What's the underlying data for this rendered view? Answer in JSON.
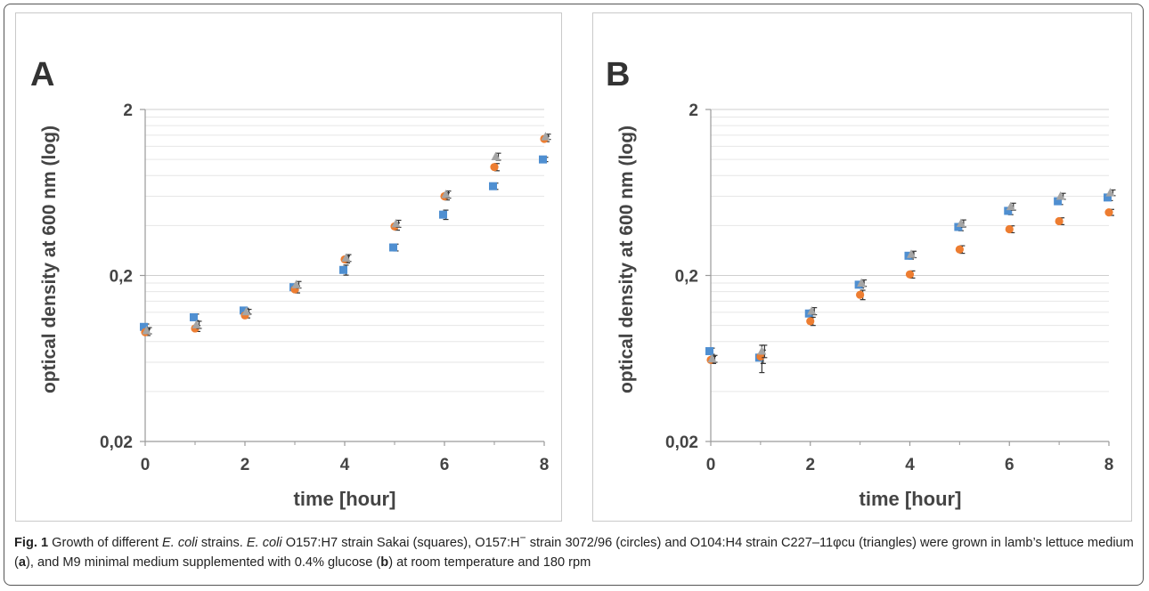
{
  "chart_data": [
    {
      "panel": "A",
      "type": "scatter",
      "xlabel": "time [hour]",
      "ylabel": "optical density at 600 nm (log)",
      "xlim": [
        0,
        8
      ],
      "ylim": [
        0.02,
        2
      ],
      "yscale": "log",
      "xticks": [
        "0",
        "2",
        "4",
        "6",
        "8"
      ],
      "yticks": [
        {
          "value": 0.02,
          "label": "0,02"
        },
        {
          "value": 0.2,
          "label": "0,2"
        },
        {
          "value": 2,
          "label": "2"
        }
      ],
      "grid": true,
      "series": [
        {
          "marker": "square",
          "color": "#4f8fd1",
          "x": [
            0,
            1,
            2,
            3,
            4,
            5,
            6,
            7,
            8
          ],
          "y": [
            0.098,
            0.112,
            0.123,
            0.17,
            0.216,
            0.295,
            0.465,
            0.69,
            1.0
          ],
          "err": [
            0.004,
            0.005,
            0.004,
            0.008,
            0.015,
            0.014,
            0.03,
            0.03,
            0.03
          ]
        },
        {
          "marker": "circle",
          "color": "#ed7d31",
          "x": [
            0,
            1,
            2,
            3,
            4,
            5,
            6,
            7,
            8
          ],
          "y": [
            0.091,
            0.096,
            0.115,
            0.165,
            0.25,
            0.395,
            0.6,
            0.9,
            1.33
          ],
          "err": [
            0.004,
            0.004,
            0.004,
            0.008,
            0.012,
            0.02,
            0.03,
            0.045,
            0.05
          ]
        },
        {
          "marker": "triangle",
          "color": "#a5a5a5",
          "x": [
            0,
            1,
            2,
            3,
            4,
            5,
            6,
            7,
            8
          ],
          "y": [
            0.093,
            0.101,
            0.121,
            0.176,
            0.255,
            0.41,
            0.615,
            1.04,
            1.37
          ],
          "err": [
            0.004,
            0.005,
            0.004,
            0.008,
            0.012,
            0.02,
            0.03,
            0.05,
            0.05
          ]
        }
      ]
    },
    {
      "panel": "B",
      "type": "scatter",
      "xlabel": "time [hour]",
      "ylabel": "optical density at 600 nm (log)",
      "xlim": [
        0,
        8
      ],
      "ylim": [
        0.02,
        2
      ],
      "yscale": "log",
      "xticks": [
        "0",
        "2",
        "4",
        "6",
        "8"
      ],
      "yticks": [
        {
          "value": 0.02,
          "label": "0,02"
        },
        {
          "value": 0.2,
          "label": "0,2"
        },
        {
          "value": 2,
          "label": "2"
        }
      ],
      "grid": true,
      "series": [
        {
          "marker": "square",
          "color": "#4f8fd1",
          "x": [
            0,
            1,
            2,
            3,
            4,
            5,
            6,
            7,
            8
          ],
          "y": [
            0.07,
            0.064,
            0.118,
            0.176,
            0.263,
            0.392,
            0.49,
            0.56,
            0.59
          ],
          "err": [
            0.003,
            0.012,
            0.006,
            0.008,
            0.012,
            0.02,
            0.025,
            0.025,
            0.025
          ]
        },
        {
          "marker": "circle",
          "color": "#ed7d31",
          "x": [
            0,
            1,
            2,
            3,
            4,
            5,
            6,
            7,
            8
          ],
          "y": [
            0.062,
            0.065,
            0.106,
            0.153,
            0.203,
            0.287,
            0.38,
            0.425,
            0.48
          ],
          "err": [
            0.003,
            0.006,
            0.006,
            0.01,
            0.01,
            0.015,
            0.018,
            0.02,
            0.02
          ]
        },
        {
          "marker": "triangle",
          "color": "#a5a5a5",
          "x": [
            0,
            1,
            2,
            3,
            4,
            5,
            6,
            7,
            8
          ],
          "y": [
            0.063,
            0.07,
            0.122,
            0.18,
            0.268,
            0.412,
            0.52,
            0.6,
            0.63
          ],
          "err": [
            0.003,
            0.006,
            0.006,
            0.008,
            0.012,
            0.02,
            0.025,
            0.025,
            0.025
          ]
        }
      ]
    }
  ],
  "caption": {
    "label": "Fig. 1",
    "segments": [
      {
        "text": " Growth of different ",
        "style": "normal"
      },
      {
        "text": "E. coli",
        "style": "italic"
      },
      {
        "text": " strains. ",
        "style": "normal"
      },
      {
        "text": "E. coli",
        "style": "italic"
      },
      {
        "text": " O157:H7 strain Sakai (squares), O157:H",
        "style": "normal"
      },
      {
        "text": "−",
        "style": "sup"
      },
      {
        "text": " strain 3072/96 (circles) and O104:H4 strain C227–11φcu (triangles) were grown in lamb’s lettuce medium (",
        "style": "normal"
      },
      {
        "text": "a",
        "style": "bold"
      },
      {
        "text": "), and M9 minimal medium supplemented with 0.4% glucose (",
        "style": "normal"
      },
      {
        "text": "b",
        "style": "bold"
      },
      {
        "text": ") at room temperature and 180 rpm",
        "style": "normal"
      }
    ]
  }
}
